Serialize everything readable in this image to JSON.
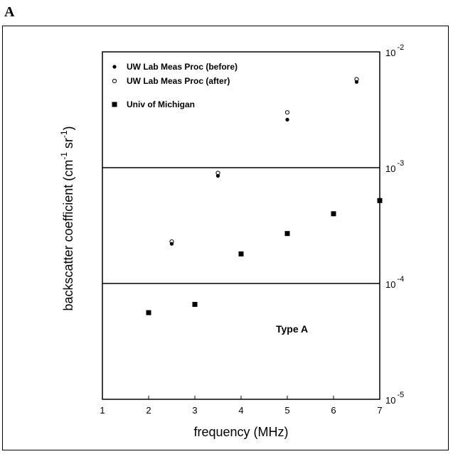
{
  "panel_label": "A",
  "chart_data": {
    "type": "scatter",
    "title": "",
    "xlabel": "frequency (MHz)",
    "ylabel": "backscatter coefficient (cm⁻¹sr⁻¹)",
    "ylabel_parts": [
      "backscatter coefficient (cm",
      "-1",
      " sr",
      "-1",
      ")"
    ],
    "xlim": [
      1,
      7
    ],
    "ylim": [
      1e-05,
      0.01
    ],
    "y_scale": "log",
    "x_ticks": [
      1,
      2,
      3,
      4,
      5,
      6,
      7
    ],
    "y_ticks": [
      {
        "value": 0.01,
        "base": "10",
        "exp": "-2"
      },
      {
        "value": 0.001,
        "base": "10",
        "exp": "-3"
      },
      {
        "value": 0.0001,
        "base": "10",
        "exp": "-4"
      },
      {
        "value": 1e-05,
        "base": "10",
        "exp": "-5"
      }
    ],
    "gridlines_y": [
      0.001,
      0.0001
    ],
    "legend_position": "top-left",
    "annotation": "Type A",
    "series": [
      {
        "name": "UW Lab Meas Proc (before)",
        "marker": "filled-circle",
        "x": [
          2.5,
          3.5,
          5.0,
          6.5
        ],
        "y": [
          0.00022,
          0.00085,
          0.0026,
          0.0055
        ]
      },
      {
        "name": "UW Lab Meas Proc (after)",
        "marker": "open-circle",
        "x": [
          2.5,
          3.5,
          5.0,
          6.5
        ],
        "y": [
          0.00023,
          0.0009,
          0.003,
          0.0058
        ]
      },
      {
        "name": "Univ of Michigan",
        "marker": "filled-square",
        "x": [
          2,
          3,
          4,
          5,
          6,
          7
        ],
        "y": [
          5.6e-05,
          6.6e-05,
          0.00018,
          0.00027,
          0.0004,
          0.00052
        ]
      }
    ]
  }
}
